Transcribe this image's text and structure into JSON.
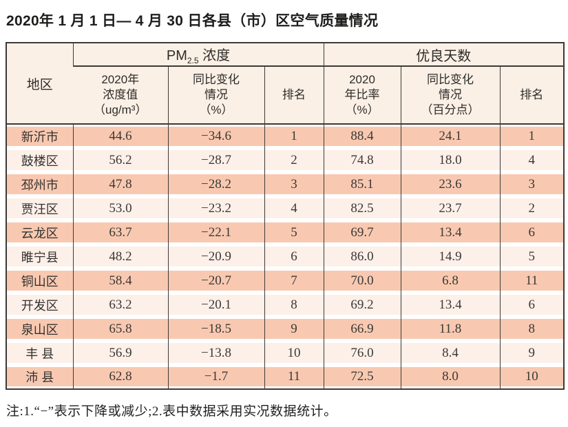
{
  "page": {
    "title": "2020年 1 月 1 日— 4 月 30 日各县（市）区空气质量情况",
    "note": "注:1.“−”表示下降或减少;2.表中数据采用实况数据统计。"
  },
  "table": {
    "header": {
      "region": "地区",
      "pm_group": {
        "prefix": "PM",
        "sub": "2.5",
        "suffix": " 浓度"
      },
      "days_group": "优良天数",
      "columns": [
        "2020年\n浓度值\n（ug/m³）",
        "同比变化\n情况\n（%）",
        "排名",
        "2020\n年比率\n（%）",
        "同比变化\n情况\n（百分点）",
        "排名"
      ]
    },
    "rows": [
      {
        "region": "新沂市",
        "pm_value": "44.6",
        "pm_change": "−34.6",
        "pm_rank": "1",
        "days_rate": "88.4",
        "days_change": "24.1",
        "days_rank": "1"
      },
      {
        "region": "鼓楼区",
        "pm_value": "56.2",
        "pm_change": "−28.7",
        "pm_rank": "2",
        "days_rate": "74.8",
        "days_change": "18.0",
        "days_rank": "4"
      },
      {
        "region": "邳州市",
        "pm_value": "47.8",
        "pm_change": "−28.2",
        "pm_rank": "3",
        "days_rate": "85.1",
        "days_change": "23.6",
        "days_rank": "3"
      },
      {
        "region": "贾汪区",
        "pm_value": "53.0",
        "pm_change": "−23.2",
        "pm_rank": "4",
        "days_rate": "82.5",
        "days_change": "23.7",
        "days_rank": "2"
      },
      {
        "region": "云龙区",
        "pm_value": "63.7",
        "pm_change": "−22.1",
        "pm_rank": "5",
        "days_rate": "69.7",
        "days_change": "13.4",
        "days_rank": "6"
      },
      {
        "region": "睢宁县",
        "pm_value": "48.2",
        "pm_change": "−20.9",
        "pm_rank": "6",
        "days_rate": "86.0",
        "days_change": "14.9",
        "days_rank": "5"
      },
      {
        "region": "铜山区",
        "pm_value": "58.4",
        "pm_change": "−20.7",
        "pm_rank": "7",
        "days_rate": "70.0",
        "days_change": "6.8",
        "days_rank": "11"
      },
      {
        "region": "开发区",
        "pm_value": "63.2",
        "pm_change": "−20.1",
        "pm_rank": "8",
        "days_rate": "69.2",
        "days_change": "13.4",
        "days_rank": "6"
      },
      {
        "region": "泉山区",
        "pm_value": "65.8",
        "pm_change": "−18.5",
        "pm_rank": "9",
        "days_rate": "66.9",
        "days_change": "11.8",
        "days_rank": "8"
      },
      {
        "region": "丰 县",
        "pm_value": "56.9",
        "pm_change": "−13.8",
        "pm_rank": "10",
        "days_rate": "76.0",
        "days_change": "8.4",
        "days_rank": "9"
      },
      {
        "region": "沛 县",
        "pm_value": "62.8",
        "pm_change": "−1.7",
        "pm_rank": "11",
        "days_rate": "72.5",
        "days_change": "8.0",
        "days_rank": "10"
      }
    ]
  },
  "colors": {
    "row_odd_bg": "#f8c9b0",
    "row_even_bg": "#fdf0e9",
    "header_bg": "#fbf0e5",
    "border": "#3c3836",
    "text": "#333130"
  }
}
